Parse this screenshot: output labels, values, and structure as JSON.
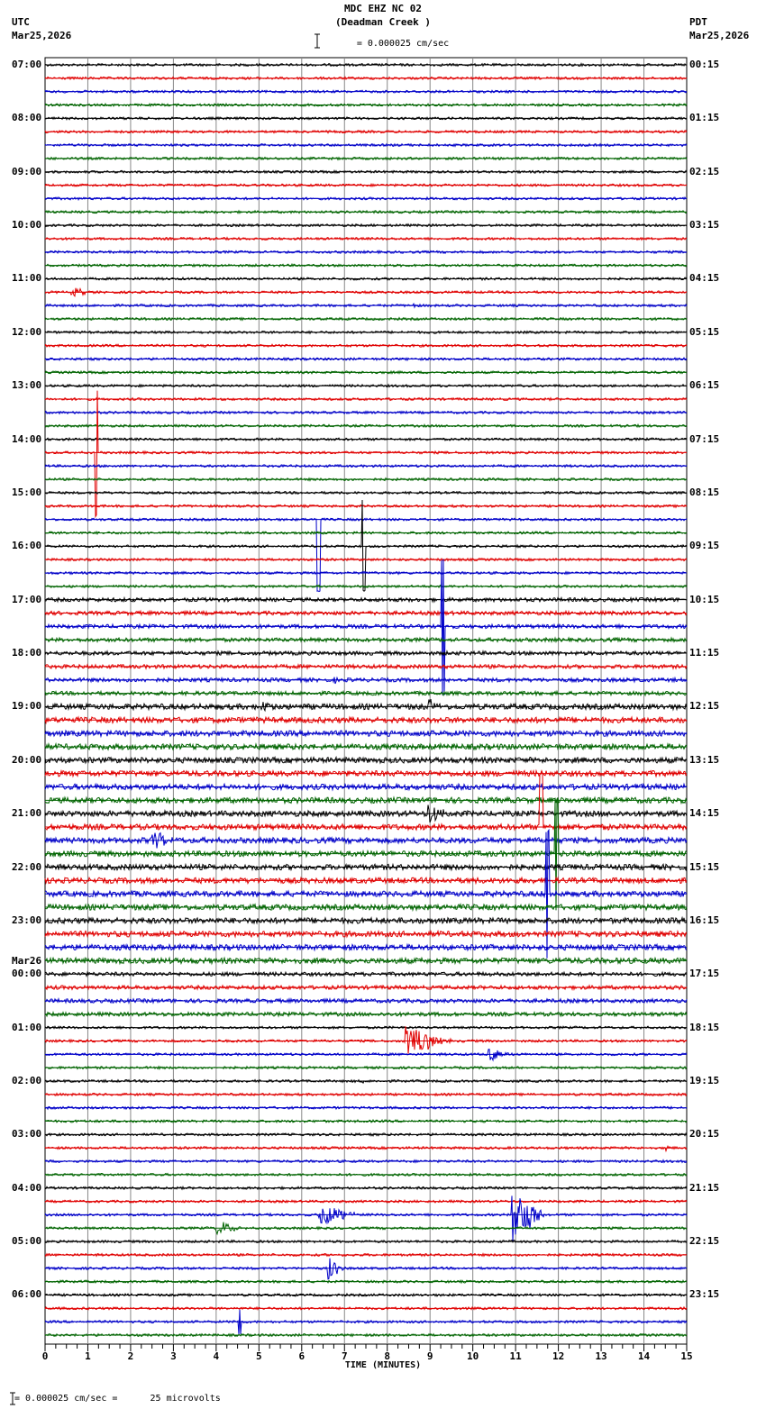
{
  "header": {
    "title": "MDC EHZ NC 02",
    "subtitle": "(Deadman Creek )",
    "scale": "= 0.000025 cm/sec",
    "left_tz": "UTC",
    "left_date": "Mar25,2026",
    "right_tz": "PDT",
    "right_date": "Mar25,2026"
  },
  "footer": {
    "scale_note": "= 0.000025 cm/sec =      25 microvolts",
    "xlabel": "TIME (MINUTES)"
  },
  "chart_data": {
    "type": "line",
    "title": "MDC EHZ NC 02 (Deadman Creek )",
    "xlabel": "TIME (MINUTES)",
    "ylabel": "",
    "xlim": [
      0,
      15
    ],
    "x_ticks": [
      "0",
      "1",
      "2",
      "3",
      "4",
      "5",
      "6",
      "7",
      "8",
      "9",
      "10",
      "11",
      "12",
      "13",
      "14",
      "15"
    ],
    "grid": true,
    "traces_per_hour": 4,
    "trace_count": 96,
    "trace_colors": [
      "#000000",
      "#e00000",
      "#0000c8",
      "#006400"
    ],
    "left_labels": [
      {
        "row": 0,
        "text": "07:00"
      },
      {
        "row": 4,
        "text": "08:00"
      },
      {
        "row": 8,
        "text": "09:00"
      },
      {
        "row": 12,
        "text": "10:00"
      },
      {
        "row": 16,
        "text": "11:00"
      },
      {
        "row": 20,
        "text": "12:00"
      },
      {
        "row": 24,
        "text": "13:00"
      },
      {
        "row": 28,
        "text": "14:00"
      },
      {
        "row": 32,
        "text": "15:00"
      },
      {
        "row": 36,
        "text": "16:00"
      },
      {
        "row": 40,
        "text": "17:00"
      },
      {
        "row": 44,
        "text": "18:00"
      },
      {
        "row": 48,
        "text": "19:00"
      },
      {
        "row": 52,
        "text": "20:00"
      },
      {
        "row": 56,
        "text": "21:00"
      },
      {
        "row": 60,
        "text": "22:00"
      },
      {
        "row": 64,
        "text": "23:00"
      },
      {
        "row": 68,
        "text": "00:00",
        "date": "Mar26"
      },
      {
        "row": 72,
        "text": "01:00"
      },
      {
        "row": 76,
        "text": "02:00"
      },
      {
        "row": 80,
        "text": "03:00"
      },
      {
        "row": 84,
        "text": "04:00"
      },
      {
        "row": 88,
        "text": "05:00"
      },
      {
        "row": 92,
        "text": "06:00"
      }
    ],
    "right_labels": [
      "00:15",
      "01:15",
      "02:15",
      "03:15",
      "04:15",
      "05:15",
      "06:15",
      "07:15",
      "08:15",
      "09:15",
      "10:15",
      "11:15",
      "12:15",
      "13:15",
      "14:15",
      "15:15",
      "16:15",
      "17:15",
      "18:15",
      "19:15",
      "20:15",
      "21:15",
      "22:15",
      "23:15"
    ],
    "events": [
      {
        "row": 17,
        "minute": 0.6,
        "amp": 5,
        "dur": 0.5
      },
      {
        "row": 18,
        "minute": 8.6,
        "amp": 5,
        "dur": 0.1
      },
      {
        "row": 29,
        "minute": 1.2,
        "amp": 70,
        "dur": 0.05,
        "spike": true
      },
      {
        "row": 34,
        "minute": 6.4,
        "amp": 80,
        "dur": 0.05,
        "spike": true
      },
      {
        "row": 36,
        "minute": 7.45,
        "amp": 50,
        "dur": 0.05,
        "spike": true
      },
      {
        "row": 42,
        "minute": 9.3,
        "amp": 75,
        "dur": 0.05,
        "spike": true
      },
      {
        "row": 46,
        "minute": 6.7,
        "amp": 6,
        "dur": 0.15
      },
      {
        "row": 48,
        "minute": 5.0,
        "amp": 8,
        "dur": 0.3
      },
      {
        "row": 48,
        "minute": 8.95,
        "amp": 8,
        "dur": 0.3
      },
      {
        "row": 56,
        "minute": 8.95,
        "amp": 12,
        "dur": 0.5
      },
      {
        "row": 58,
        "minute": 2.5,
        "amp": 10,
        "dur": 0.5
      },
      {
        "row": 57,
        "minute": 11.6,
        "amp": 60,
        "dur": 0.1,
        "spike": true
      },
      {
        "row": 59,
        "minute": 11.95,
        "amp": 60,
        "dur": 0.1,
        "spike": true
      },
      {
        "row": 62,
        "minute": 11.75,
        "amp": 70,
        "dur": 0.1,
        "spike": true
      },
      {
        "row": 73,
        "minute": 8.4,
        "amp": 16,
        "dur": 1.2
      },
      {
        "row": 74,
        "minute": 10.35,
        "amp": 8,
        "dur": 0.6
      },
      {
        "row": 76,
        "minute": 7.4,
        "amp": 8,
        "dur": 0.08
      },
      {
        "row": 81,
        "minute": 14.5,
        "amp": 8,
        "dur": 0.1
      },
      {
        "row": 86,
        "minute": 6.4,
        "amp": 12,
        "dur": 1.0
      },
      {
        "row": 86,
        "minute": 10.9,
        "amp": 35,
        "dur": 0.8
      },
      {
        "row": 87,
        "minute": 4.0,
        "amp": 8,
        "dur": 0.6
      },
      {
        "row": 90,
        "minute": 6.6,
        "amp": 14,
        "dur": 0.4
      },
      {
        "row": 94,
        "minute": 4.55,
        "amp": 14,
        "dur": 0.05,
        "spike": true
      }
    ]
  }
}
